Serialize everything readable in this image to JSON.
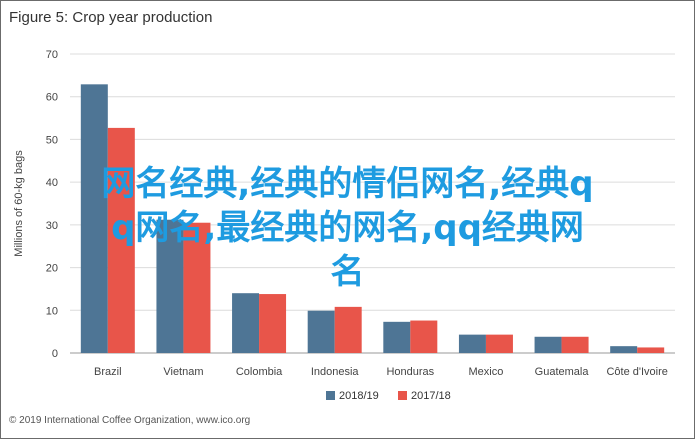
{
  "figure": {
    "title": "Figure 5: Crop year production",
    "footer": "© 2019 International Coffee Organization, www.ico.org",
    "overlay_lines": [
      "网名经典,经典的情侣网名,经典q",
      "q网名,最经典的网名,qq经典网",
      "名"
    ]
  },
  "chart_data": {
    "type": "bar",
    "title": "Crop year production",
    "xlabel": "",
    "ylabel": "Millions of 60-kg bags",
    "ylim": [
      0,
      70
    ],
    "yticks": [
      0,
      10,
      20,
      30,
      40,
      50,
      60,
      70
    ],
    "categories": [
      "Brazil",
      "Vietnam",
      "Colombia",
      "Indonesia",
      "Honduras",
      "Mexico",
      "Guatemala",
      "Côte d'Ivoire"
    ],
    "series": [
      {
        "name": "2018/19",
        "color": "#4e7595",
        "values": [
          62.9,
          31.2,
          14.0,
          9.9,
          7.3,
          4.3,
          3.8,
          1.6
        ]
      },
      {
        "name": "2017/18",
        "color": "#e8554a",
        "values": [
          52.7,
          30.5,
          13.8,
          10.8,
          7.6,
          4.3,
          3.8,
          1.3
        ]
      }
    ],
    "grid": true,
    "legend_position": "bottom"
  }
}
